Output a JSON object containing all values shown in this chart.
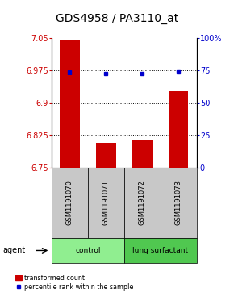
{
  "title": "GDS4958 / PA3110_at",
  "samples": [
    "GSM1191070",
    "GSM1191071",
    "GSM1191072",
    "GSM1191073"
  ],
  "bar_values": [
    7.045,
    6.808,
    6.813,
    6.928
  ],
  "percentile_values": [
    74.0,
    72.5,
    72.5,
    74.5
  ],
  "bar_color": "#cc0000",
  "percentile_color": "#0000cc",
  "ylim_left": [
    6.75,
    7.05
  ],
  "ylim_right": [
    0,
    100
  ],
  "yticks_left": [
    6.75,
    6.825,
    6.9,
    6.975,
    7.05
  ],
  "yticks_right": [
    0,
    25,
    50,
    75,
    100
  ],
  "ytick_labels_left": [
    "6.75",
    "6.825",
    "6.9",
    "6.975",
    "7.05"
  ],
  "ytick_labels_right": [
    "0",
    "25",
    "50",
    "75",
    "100%"
  ],
  "grid_values": [
    6.825,
    6.9,
    6.975
  ],
  "groups": [
    {
      "label": "control",
      "indices": [
        0,
        1
      ],
      "color": "#90ee90"
    },
    {
      "label": "lung surfactant",
      "indices": [
        2,
        3
      ],
      "color": "#50c850"
    }
  ],
  "agent_label": "agent",
  "legend_bar_label": "transformed count",
  "legend_dot_label": "percentile rank within the sample",
  "bar_width": 0.55,
  "baseline": 6.75,
  "left_tick_color": "#cc0000",
  "right_tick_color": "#0000cc",
  "title_fontsize": 10,
  "axis_fontsize": 7,
  "sample_box_color": "#c8c8c8"
}
